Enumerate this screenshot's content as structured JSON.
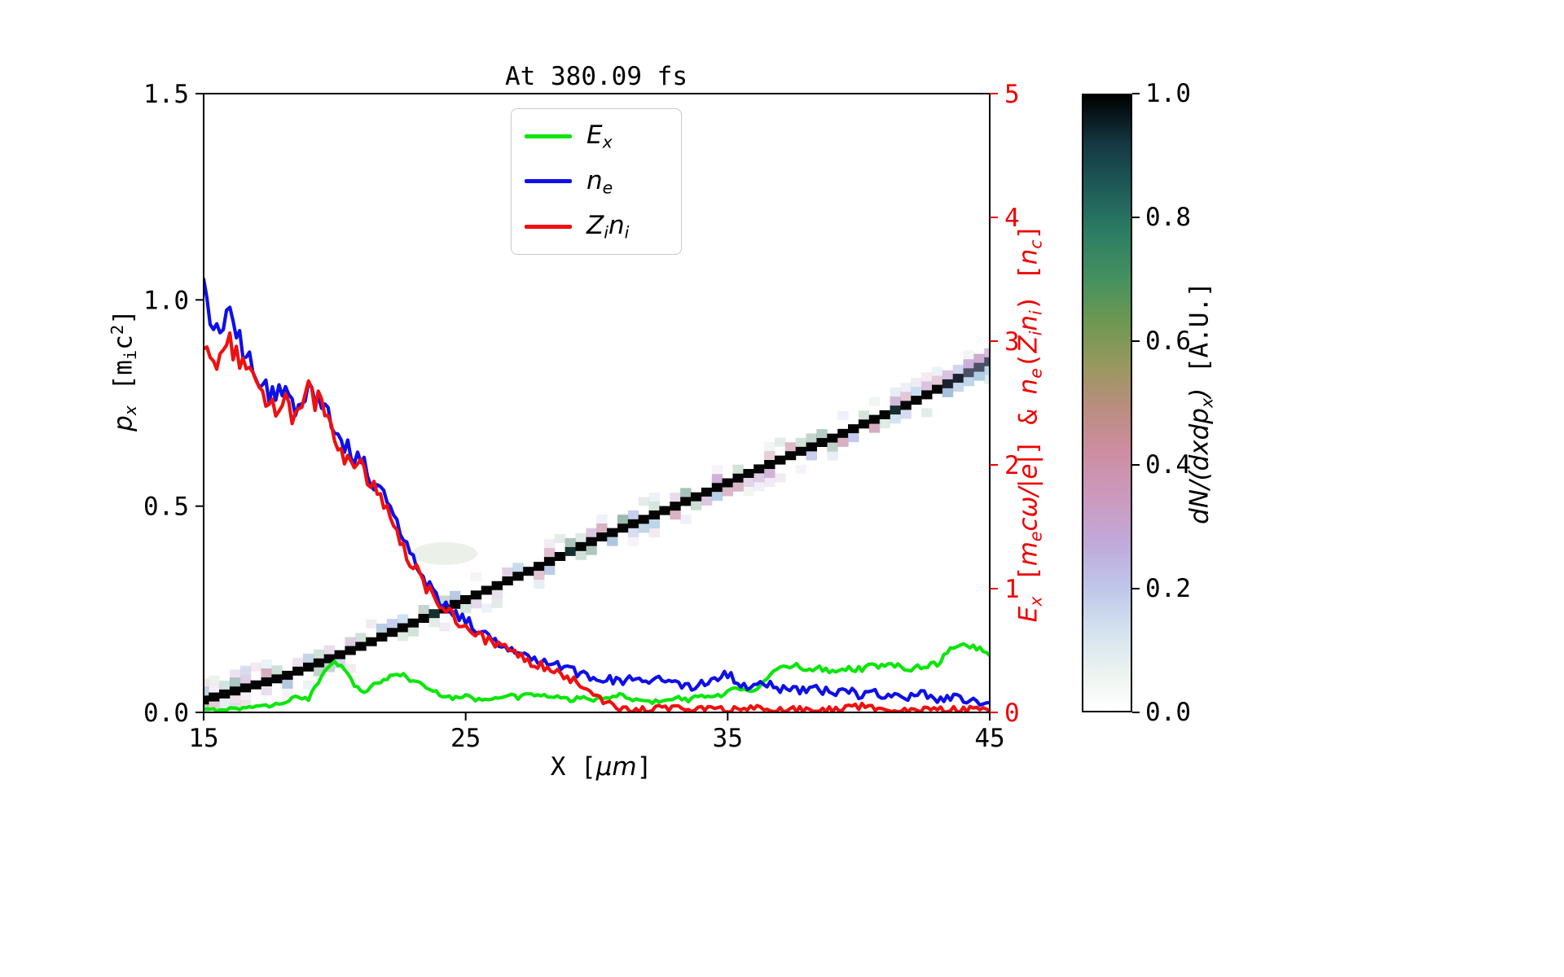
{
  "chart_data": {
    "type": "heatmap+line",
    "title": "At 380.09 fs",
    "x": {
      "start": 15,
      "step": 0.5,
      "count": 61,
      "range": [
        15,
        45
      ],
      "ticks": [
        "15",
        "25",
        "35",
        "45"
      ],
      "label_segments": [
        {
          "t": "X [",
          "f": "m"
        },
        {
          "t": "μm",
          "f": "i"
        },
        {
          "t": "]",
          "f": "m"
        }
      ]
    },
    "y_left": {
      "range": [
        0,
        1.5
      ],
      "ticks": [
        "0.0",
        "0.5",
        "1.0",
        "1.5"
      ],
      "label_segments": [
        {
          "t": "p",
          "f": "i"
        },
        {
          "t": "x",
          "f": "i-sub"
        },
        {
          "t": " [m",
          "f": "m"
        },
        {
          "t": "i",
          "f": "m-sub"
        },
        {
          "t": "c",
          "f": "m"
        },
        {
          "t": "2",
          "f": "m-sup"
        },
        {
          "t": "]",
          "f": "m"
        }
      ]
    },
    "y_right": {
      "range": [
        0,
        5
      ],
      "ticks": [
        "0",
        "1",
        "2",
        "3",
        "4",
        "5"
      ],
      "color": "#ee0000",
      "label_segments": [
        {
          "t": "E",
          "f": "i"
        },
        {
          "t": "x",
          "f": "i-sub"
        },
        {
          "t": " [",
          "f": "m"
        },
        {
          "t": "m",
          "f": "i"
        },
        {
          "t": "e",
          "f": "i-sub"
        },
        {
          "t": "cω/|e|",
          "f": "i"
        },
        {
          "t": "] & ",
          "f": "m"
        },
        {
          "t": "n",
          "f": "i"
        },
        {
          "t": "e",
          "f": "i-sub"
        },
        {
          "t": "(",
          "f": "m"
        },
        {
          "t": "Z",
          "f": "i"
        },
        {
          "t": "i",
          "f": "i-sub"
        },
        {
          "t": "n",
          "f": "i"
        },
        {
          "t": "i",
          "f": "i-sub"
        },
        {
          "t": ") [",
          "f": "m"
        },
        {
          "t": "n",
          "f": "i"
        },
        {
          "t": "c",
          "f": "i-sub"
        },
        {
          "t": "]",
          "f": "m"
        }
      ]
    },
    "series": [
      {
        "id": "Ex",
        "name": "E_x",
        "axis": "right",
        "color": "#0ae60a",
        "noise_base": 0.012,
        "noise_scale": 0.04,
        "values": [
          0.02,
          0.02,
          0.03,
          0.03,
          0.06,
          0.05,
          0.08,
          0.12,
          0.1,
          0.3,
          0.44,
          0.3,
          0.16,
          0.22,
          0.28,
          0.31,
          0.26,
          0.2,
          0.15,
          0.12,
          0.13,
          0.1,
          0.12,
          0.14,
          0.12,
          0.15,
          0.13,
          0.12,
          0.1,
          0.12,
          0.1,
          0.12,
          0.14,
          0.1,
          0.08,
          0.1,
          0.12,
          0.1,
          0.14,
          0.12,
          0.16,
          0.2,
          0.18,
          0.28,
          0.35,
          0.38,
          0.36,
          0.35,
          0.34,
          0.36,
          0.35,
          0.38,
          0.37,
          0.38,
          0.36,
          0.38,
          0.4,
          0.5,
          0.55,
          0.52,
          0.46
        ]
      },
      {
        "id": "ne",
        "name": "n_e",
        "axis": "right",
        "color": "#0f0fe8",
        "noise_base": 0.03,
        "noise_scale": 0.028,
        "values": [
          3.4,
          3.05,
          3.2,
          2.9,
          2.78,
          2.52,
          2.62,
          2.42,
          2.66,
          2.55,
          2.3,
          2.12,
          2.05,
          1.86,
          1.74,
          1.45,
          1.22,
          1.05,
          0.92,
          0.82,
          0.74,
          0.66,
          0.6,
          0.55,
          0.5,
          0.46,
          0.42,
          0.38,
          0.34,
          0.3,
          0.28,
          0.26,
          0.25,
          0.27,
          0.22,
          0.29,
          0.24,
          0.2,
          0.23,
          0.27,
          0.31,
          0.24,
          0.2,
          0.23,
          0.18,
          0.21,
          0.16,
          0.19,
          0.15,
          0.18,
          0.14,
          0.17,
          0.13,
          0.16,
          0.12,
          0.15,
          0.11,
          0.13,
          0.1,
          0.09,
          0.08
        ]
      },
      {
        "id": "Zini",
        "name": "Z_i n_i",
        "axis": "right",
        "color": "#ef1010",
        "noise_base": 0.028,
        "noise_scale": 0.028,
        "values": [
          2.95,
          2.82,
          2.98,
          2.76,
          2.66,
          2.42,
          2.56,
          2.34,
          2.58,
          2.48,
          2.22,
          2.04,
          1.98,
          1.8,
          1.68,
          1.4,
          1.18,
          1.0,
          0.88,
          0.78,
          0.7,
          0.62,
          0.56,
          0.51,
          0.46,
          0.41,
          0.37,
          0.32,
          0.27,
          0.2,
          0.12,
          0.06,
          0.03,
          0.02,
          0.02,
          0.03,
          0.05,
          0.04,
          0.02,
          0.02,
          0.02,
          0.02,
          0.03,
          0.02,
          0.02,
          0.02,
          0.02,
          0.03,
          0.02,
          0.04,
          0.05,
          0.03,
          0.02,
          0.02,
          0.02,
          0.02,
          0.02,
          0.02,
          0.02,
          0.02,
          0.01
        ]
      }
    ],
    "legend": [
      {
        "series_index": 0,
        "segments": [
          {
            "t": "E",
            "f": "i"
          },
          {
            "t": "x",
            "f": "i-sub"
          }
        ]
      },
      {
        "series_index": 1,
        "segments": [
          {
            "t": "n",
            "f": "i"
          },
          {
            "t": "e",
            "f": "i-sub"
          }
        ]
      },
      {
        "series_index": 2,
        "segments": [
          {
            "t": "Z",
            "f": "i"
          },
          {
            "t": "i",
            "f": "i-sub"
          },
          {
            "t": "n",
            "f": "i"
          },
          {
            "t": "i",
            "f": "i-sub"
          }
        ]
      }
    ],
    "phase_space": {
      "description": "ion phase-space band, value ~1.0 along core",
      "control_points": [
        [
          15,
          0.03
        ],
        [
          18,
          0.085
        ],
        [
          21,
          0.16
        ],
        [
          24,
          0.245
        ],
        [
          27,
          0.33
        ],
        [
          30,
          0.42
        ],
        [
          33,
          0.5
        ],
        [
          36,
          0.585
        ],
        [
          39,
          0.665
        ],
        [
          42,
          0.75
        ],
        [
          45,
          0.85
        ]
      ],
      "core_value": 1.0,
      "edge_palette": [
        "#c7a3cf",
        "#b2bae6",
        "#a5c9e2",
        "#bdd7c6",
        "#86aa9b",
        "#ce9eb4",
        "#93b2d5",
        "#d9c6e0"
      ],
      "smudge": {
        "x": 24.2,
        "px": 0.385
      }
    },
    "colorbar": {
      "range": [
        0,
        1
      ],
      "ticks": [
        "0.0",
        "0.2",
        "0.4",
        "0.6",
        "0.8",
        "1.0"
      ],
      "stops": [
        [
          0,
          "#ffffff"
        ],
        [
          0.06,
          "#edf3ef"
        ],
        [
          0.13,
          "#d3e2ef"
        ],
        [
          0.2,
          "#bfc6ea"
        ],
        [
          0.27,
          "#c0aadb"
        ],
        [
          0.34,
          "#cb9bc0"
        ],
        [
          0.42,
          "#cd8da2"
        ],
        [
          0.49,
          "#bb8d80"
        ],
        [
          0.56,
          "#99985f"
        ],
        [
          0.63,
          "#6f9852"
        ],
        [
          0.7,
          "#46915f"
        ],
        [
          0.78,
          "#2b7c64"
        ],
        [
          0.85,
          "#1e5b57"
        ],
        [
          0.92,
          "#153843"
        ],
        [
          1,
          "#000000"
        ]
      ],
      "label_segments": [
        {
          "t": "dN/(dxdp",
          "f": "i"
        },
        {
          "t": "x",
          "f": "i-sub"
        },
        {
          "t": ")",
          "f": "i"
        },
        {
          "t": " [A.U.]",
          "f": "m"
        }
      ]
    }
  }
}
